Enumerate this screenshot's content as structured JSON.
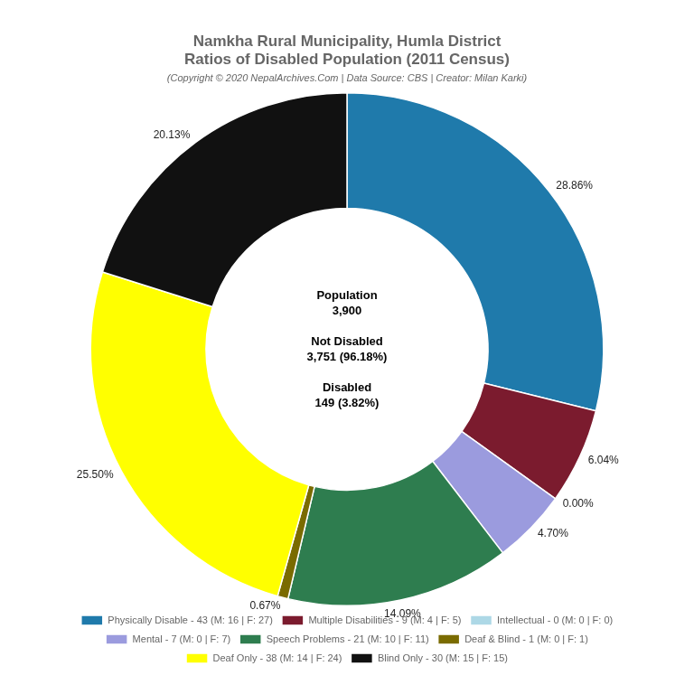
{
  "chart_data": {
    "type": "doughnut",
    "title": [
      "Namkha Rural Municipality, Humla District",
      "Ratios of Disabled Population (2011 Census)"
    ],
    "subtitle": "(Copyright © 2020 NepalArchives.Com | Data Source: CBS | Creator: Milan Karki)",
    "categories": [
      "Physically Disable - 43 (M: 16 | F: 27)",
      "Multiple Disabilities - 9 (M: 4 | F: 5)",
      "Intellectual - 0 (M: 0 | F: 0)",
      "Mental - 7 (M: 0 | F: 7)",
      "Speech Problems - 21 (M: 10 | F: 11)",
      "Deaf & Blind - 1 (M: 0 | F: 1)",
      "Deaf Only - 38 (M: 14 | F: 24)",
      "Blind Only - 30 (M: 15 | F: 15)"
    ],
    "values": [
      28.86,
      6.04,
      0.0,
      4.7,
      14.09,
      0.67,
      25.5,
      20.13
    ],
    "value_labels": [
      "28.86%",
      "6.04%",
      "0.00%",
      "4.70%",
      "14.09%",
      "0.67%",
      "25.50%",
      "20.13%"
    ],
    "colors": [
      "#1f7aab",
      "#7b1b2e",
      "#add8e6",
      "#9b9bde",
      "#2e7d4f",
      "#7a6b00",
      "#ffff00",
      "#111111"
    ],
    "data_labels": true,
    "legend": "bottom",
    "annotations": [
      "Population\n3,900\n\nNot Disabled\n3,751 (96.18%)\n\nDisabled\n149 (3.82%)"
    ]
  }
}
